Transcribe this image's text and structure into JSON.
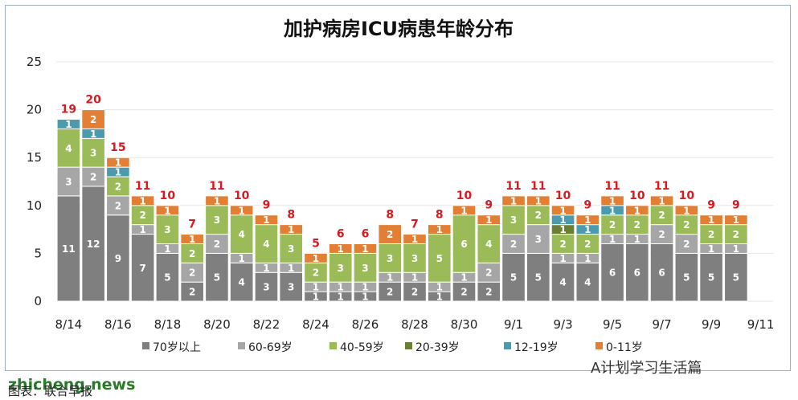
{
  "chart_data": {
    "type": "bar",
    "stacked": true,
    "title": "加护病房ICU病患年龄分布",
    "ylim": [
      0,
      25
    ],
    "yticks": [
      0,
      5,
      10,
      15,
      20,
      25
    ],
    "grid": true,
    "legend_position": "bottom",
    "categories": [
      "8/14",
      "8/15",
      "8/16",
      "8/17",
      "8/18",
      "8/19",
      "8/20",
      "8/21",
      "8/22",
      "8/23",
      "8/24",
      "8/25",
      "8/26",
      "8/27",
      "8/28",
      "8/29",
      "8/30",
      "8/31",
      "9/1",
      "9/2",
      "9/3",
      "9/4",
      "9/5",
      "9/6",
      "9/7",
      "9/8",
      "9/9",
      "9/10",
      "9/11"
    ],
    "xtick_labels": [
      "8/14",
      "8/16",
      "8/18",
      "8/20",
      "8/22",
      "8/24",
      "8/26",
      "8/28",
      "8/30",
      "9/1",
      "9/3",
      "9/5",
      "9/7",
      "9/9",
      "9/11"
    ],
    "series": [
      {
        "name": "70岁以上",
        "color": "#7f7f7f",
        "values": [
          11,
          12,
          9,
          7,
          5,
          2,
          5,
          4,
          3,
          3,
          1,
          1,
          1,
          2,
          2,
          1,
          2,
          2,
          5,
          5,
          4,
          4,
          6,
          6,
          6,
          5,
          5,
          5,
          null
        ]
      },
      {
        "name": "60-69岁",
        "color": "#a6a6a6",
        "values": [
          3,
          2,
          2,
          1,
          1,
          2,
          2,
          1,
          1,
          1,
          1,
          1,
          1,
          1,
          1,
          1,
          1,
          2,
          2,
          3,
          1,
          1,
          1,
          1,
          2,
          2,
          1,
          1,
          null
        ]
      },
      {
        "name": "40-59岁",
        "color": "#9bbb59",
        "values": [
          4,
          3,
          2,
          2,
          3,
          2,
          3,
          4,
          4,
          3,
          2,
          3,
          3,
          3,
          3,
          5,
          6,
          4,
          3,
          2,
          2,
          2,
          2,
          2,
          2,
          2,
          2,
          2,
          null
        ]
      },
      {
        "name": "20-39岁",
        "color": "#6a7f34",
        "values": [
          0,
          0,
          0,
          0,
          0,
          0,
          0,
          0,
          0,
          0,
          0,
          0,
          0,
          0,
          0,
          0,
          0,
          0,
          0,
          0,
          1,
          0,
          0,
          0,
          0,
          0,
          0,
          0,
          null
        ]
      },
      {
        "name": "12-19岁",
        "color": "#4b9aad",
        "values": [
          1,
          1,
          1,
          0,
          0,
          0,
          0,
          0,
          0,
          0,
          0,
          0,
          0,
          0,
          0,
          0,
          0,
          0,
          0,
          0,
          1,
          1,
          1,
          0,
          0,
          0,
          0,
          0,
          null
        ]
      },
      {
        "name": "0-11岁",
        "color": "#e27f35",
        "values": [
          0,
          2,
          1,
          1,
          1,
          1,
          1,
          1,
          1,
          1,
          1,
          1,
          1,
          2,
          1,
          1,
          1,
          1,
          1,
          1,
          1,
          1,
          1,
          1,
          1,
          1,
          1,
          1,
          null
        ]
      }
    ],
    "totals": [
      19,
      20,
      15,
      11,
      10,
      7,
      11,
      10,
      9,
      8,
      5,
      6,
      6,
      8,
      7,
      8,
      10,
      9,
      11,
      11,
      10,
      9,
      11,
      10,
      11,
      10,
      9,
      9,
      null
    ]
  },
  "footer": {
    "watermark": "zhicheng.news",
    "source": "图表：联合早报",
    "wechat": "A计划学习生活篇"
  }
}
